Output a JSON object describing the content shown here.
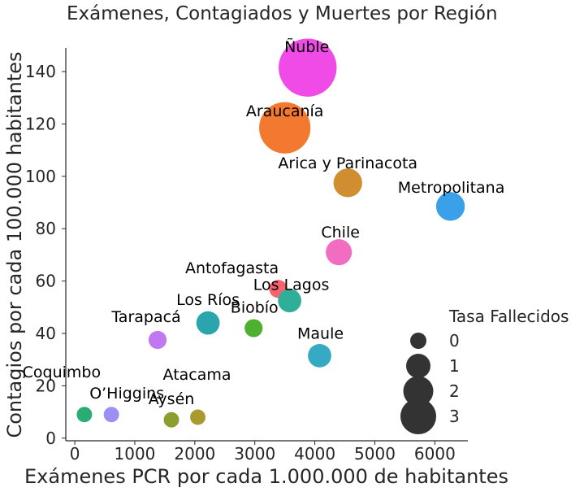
{
  "chart_data": {
    "type": "scatter",
    "title": "Exámenes, Contagiados y Muertes por Región",
    "xlabel": "Exámenes PCR por cada 1.000.000 de habitantes",
    "ylabel": "Contagios por cada 100.000 habitantes",
    "xlim": [
      -150,
      6550
    ],
    "ylim": [
      -1,
      149
    ],
    "xticks": [
      "0",
      "1000",
      "2000",
      "3000",
      "4000",
      "5000",
      "6000"
    ],
    "yticks": [
      "0",
      "20",
      "40",
      "60",
      "80",
      "100",
      "120",
      "140"
    ],
    "grid": false,
    "legend": {
      "title": "Tasa Fallecidos",
      "position": "right",
      "entries": [
        {
          "label": "0",
          "value": 0
        },
        {
          "label": "1",
          "value": 1
        },
        {
          "label": "2",
          "value": 2
        },
        {
          "label": "3",
          "value": 3
        }
      ]
    },
    "points": [
      {
        "label": "Ñuble",
        "x": 3880,
        "y": 141.5,
        "size": 3.5,
        "color": "#f04be6"
      },
      {
        "label": "Araucanía",
        "x": 3500,
        "y": 118.5,
        "size": 3.0,
        "color": "#f2792f"
      },
      {
        "label": "Arica y Parinacota",
        "x": 4550,
        "y": 97.5,
        "size": 1.3,
        "color": "#d18e30"
      },
      {
        "label": "Metropolitana",
        "x": 6260,
        "y": 88.5,
        "size": 1.3,
        "color": "#3aa0ea"
      },
      {
        "label": "Chile",
        "x": 4400,
        "y": 71,
        "size": 1.1,
        "color": "#f26cc2"
      },
      {
        "label": "Antofagasta",
        "x": 3390,
        "y": 57,
        "size": 0.5,
        "color": "#f5636f"
      },
      {
        "label": "Los Lagos",
        "x": 3580,
        "y": 52.5,
        "size": 0.9,
        "color": "#2faf9a"
      },
      {
        "label": "Los Ríos",
        "x": 2220,
        "y": 44,
        "size": 0.9,
        "color": "#2aa5ad"
      },
      {
        "label": "Biobío",
        "x": 2980,
        "y": 42,
        "size": 0.5,
        "color": "#4fb02f"
      },
      {
        "label": "Tarapacá",
        "x": 1380,
        "y": 37.5,
        "size": 0.5,
        "color": "#c177f0"
      },
      {
        "label": "Maule",
        "x": 4080,
        "y": 31.5,
        "size": 0.9,
        "color": "#36a9c3"
      },
      {
        "label": "Coquimbo",
        "x": 160,
        "y": 9,
        "size": 0.3,
        "color": "#2aad72"
      },
      {
        "label": "O’Higgins",
        "x": 610,
        "y": 9,
        "size": 0.3,
        "color": "#9a8ff2"
      },
      {
        "label": "Atacama",
        "x": 2050,
        "y": 8,
        "size": 0.3,
        "color": "#a99a2d"
      },
      {
        "label": "Aysén",
        "x": 1610,
        "y": 7,
        "size": 0.3,
        "color": "#8d9e2e"
      }
    ]
  }
}
